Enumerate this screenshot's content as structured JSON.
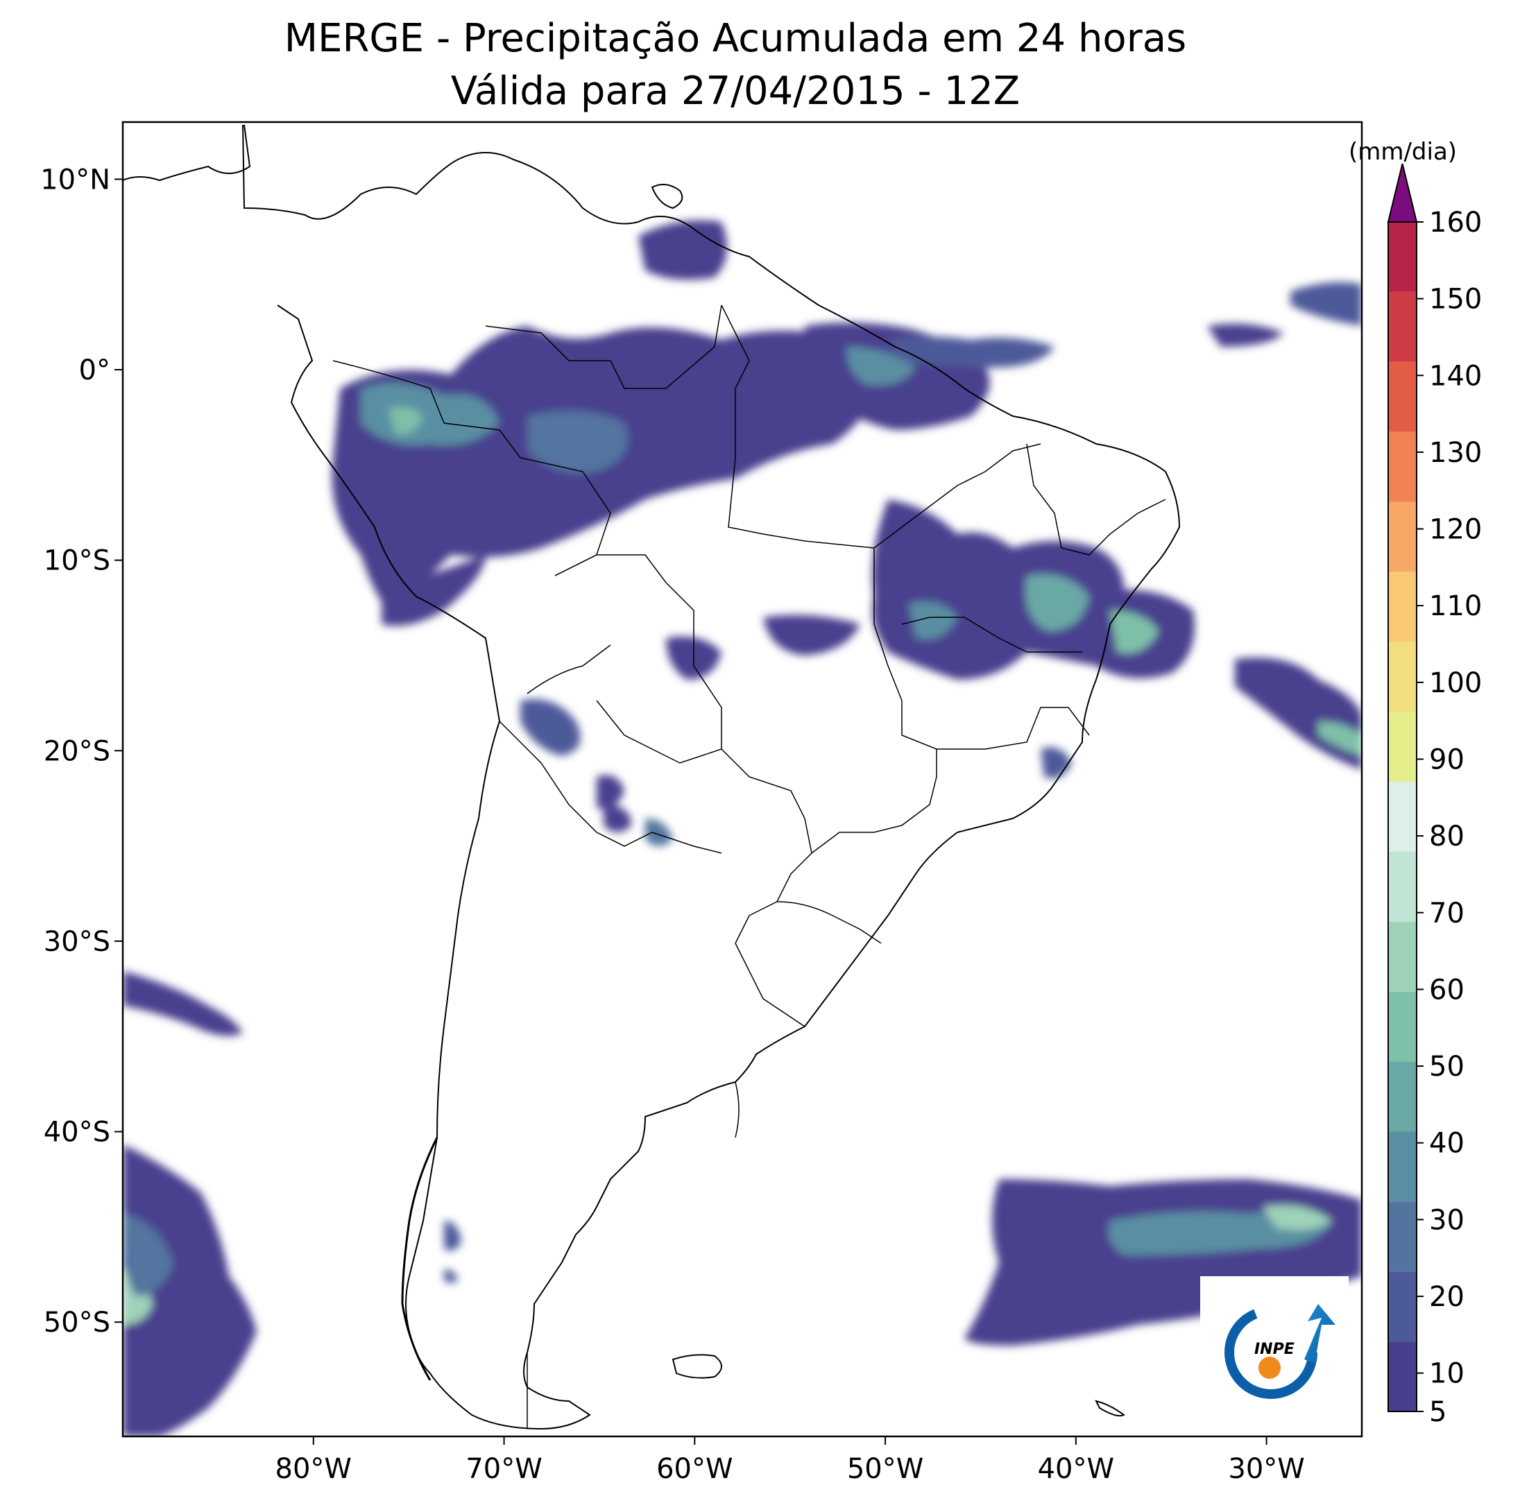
{
  "title": {
    "line1": "MERGE - Precipitação Acumulada em 24 horas",
    "line2": "Válida para 27/04/2015 - 12Z"
  },
  "map": {
    "extent": {
      "lon": [
        -90,
        -25
      ],
      "lat": [
        -56,
        13
      ]
    },
    "lat_ticks": [
      {
        "value": 10,
        "label": "10°N"
      },
      {
        "value": 0,
        "label": "0°"
      },
      {
        "value": -10,
        "label": "10°S"
      },
      {
        "value": -20,
        "label": "20°S"
      },
      {
        "value": -30,
        "label": "30°S"
      },
      {
        "value": -40,
        "label": "40°S"
      },
      {
        "value": -50,
        "label": "50°S"
      }
    ],
    "lon_ticks": [
      {
        "value": -80,
        "label": "80°W"
      },
      {
        "value": -70,
        "label": "70°W"
      },
      {
        "value": -60,
        "label": "60°W"
      },
      {
        "value": -50,
        "label": "50°W"
      },
      {
        "value": -40,
        "label": "40°W"
      },
      {
        "value": -30,
        "label": "30°W"
      }
    ]
  },
  "colorbar": {
    "unit": "(mm/dia)",
    "range": [
      5,
      160
    ],
    "ticks": [
      5,
      10,
      20,
      30,
      40,
      50,
      60,
      70,
      80,
      90,
      100,
      110,
      120,
      130,
      140,
      150,
      160
    ],
    "colors": [
      "#48408e",
      "#4d5a9a",
      "#52749f",
      "#5a8fa3",
      "#6aa8a6",
      "#7fc0a8",
      "#9fd3b8",
      "#c0e3d3",
      "#dcefea",
      "#e5ee8b",
      "#f3de7d",
      "#f8c873",
      "#f7a766",
      "#f18353",
      "#e35c46",
      "#cf3c45",
      "#b72448"
    ],
    "extend_color": "#7b0c80"
  },
  "logo": {
    "text": "INPE"
  }
}
